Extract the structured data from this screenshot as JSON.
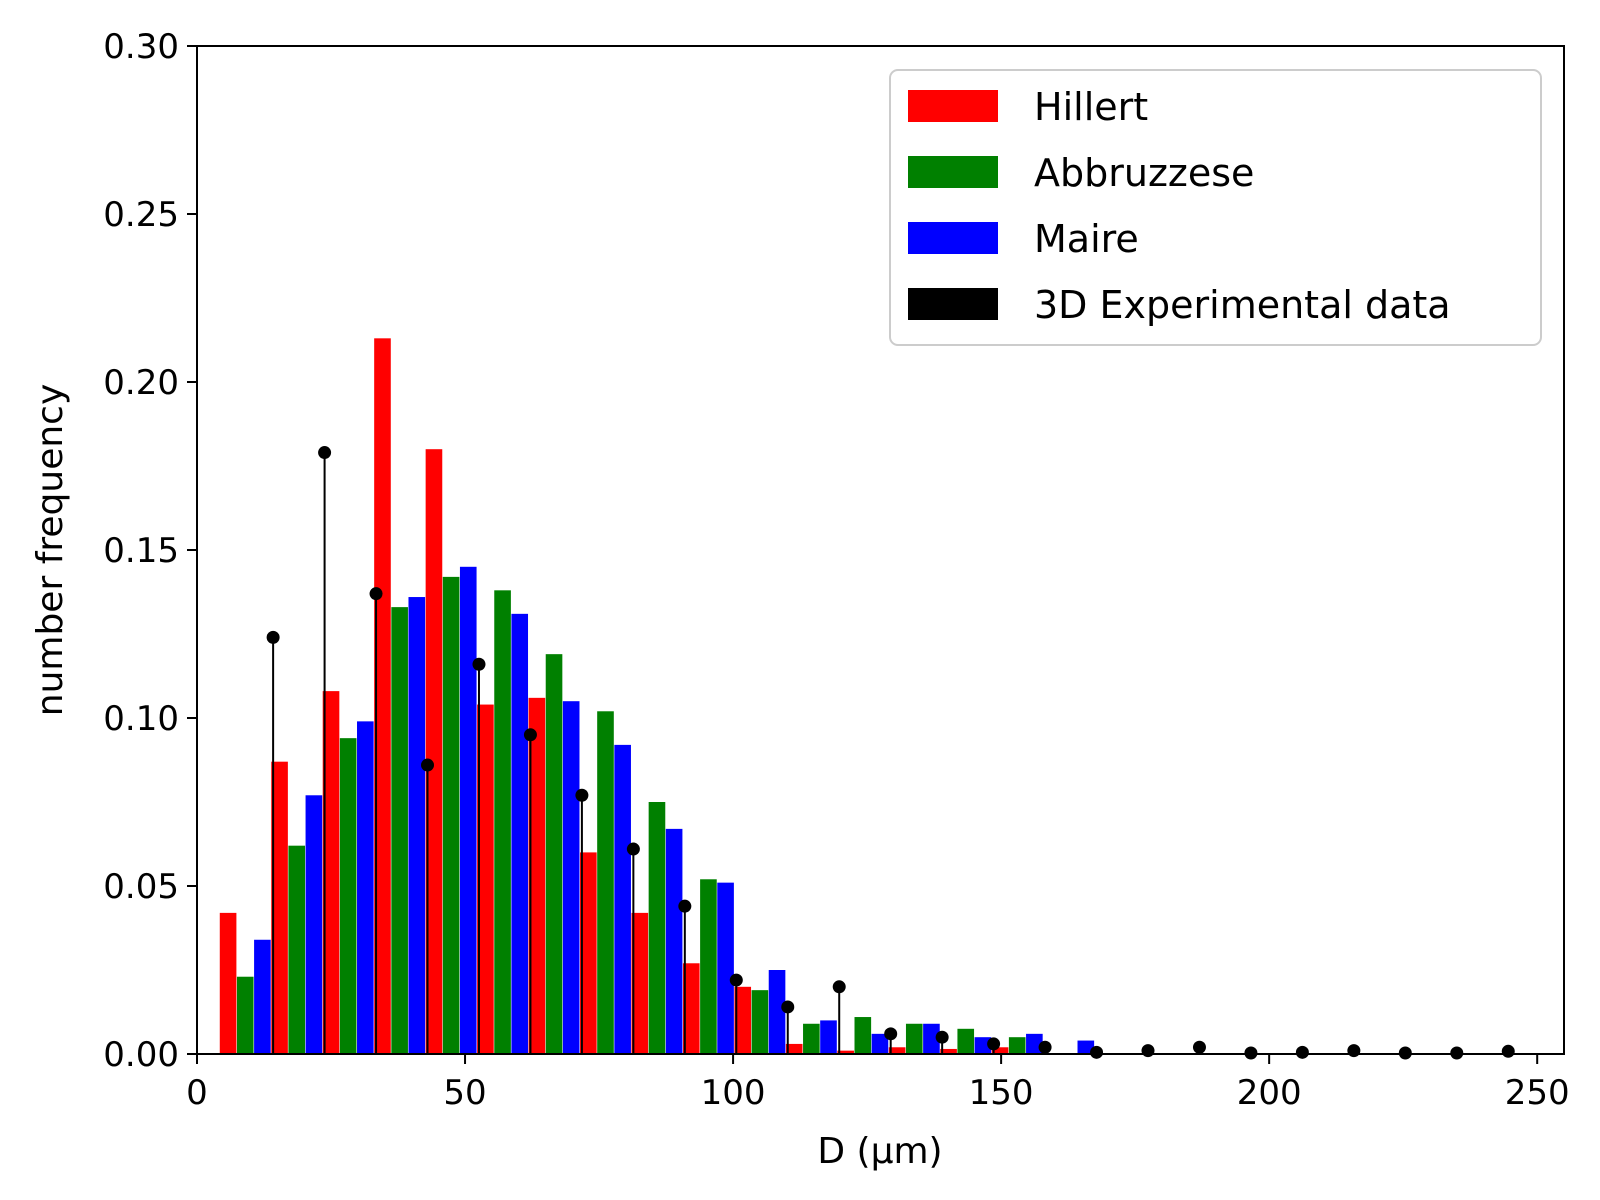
{
  "chart_data": {
    "type": "bar",
    "title": "",
    "xlabel": "D (μm)",
    "ylabel": "number frequency",
    "xlim": [
      0,
      255
    ],
    "ylim": [
      0,
      0.3
    ],
    "xticks": [
      0,
      50,
      100,
      150,
      200,
      250
    ],
    "yticks": [
      0.0,
      0.05,
      0.1,
      0.15,
      0.2,
      0.25,
      0.3
    ],
    "xtick_labels": [
      "0",
      "50",
      "100",
      "150",
      "200",
      "250"
    ],
    "ytick_labels": [
      "0.00",
      "0.05",
      "0.10",
      "0.15",
      "0.20",
      "0.25",
      "0.30"
    ],
    "grid": false,
    "legend_position": "top-right",
    "bin_centers": [
      9.0,
      18.6,
      28.2,
      37.8,
      47.4,
      57.0,
      66.6,
      76.2,
      85.8,
      95.4,
      105.0,
      114.6,
      124.2,
      133.8,
      143.4,
      153.0,
      162.6
    ],
    "series": [
      {
        "name": "Hillert",
        "color": "#ff0000",
        "values": [
          0.042,
          0.087,
          0.108,
          0.213,
          0.18,
          0.104,
          0.106,
          0.06,
          0.042,
          0.027,
          0.02,
          0.003,
          0.001,
          0.002,
          0.0015,
          0.002,
          0.0
        ]
      },
      {
        "name": "Abbruzzese",
        "color": "#008000",
        "values": [
          0.023,
          0.062,
          0.094,
          0.133,
          0.142,
          0.138,
          0.119,
          0.102,
          0.075,
          0.052,
          0.019,
          0.009,
          0.011,
          0.009,
          0.0075,
          0.005,
          0.0
        ]
      },
      {
        "name": "Maire",
        "color": "#0000ff",
        "values": [
          0.034,
          0.077,
          0.099,
          0.136,
          0.145,
          0.131,
          0.105,
          0.092,
          0.067,
          0.051,
          0.025,
          0.01,
          0.006,
          0.009,
          0.005,
          0.006,
          0.004
        ]
      }
    ],
    "experimental": {
      "name": "3D Experimental data",
      "color": "#000000",
      "x": [
        14.2,
        23.8,
        33.4,
        43.0,
        52.6,
        62.2,
        71.8,
        81.4,
        91.0,
        100.6,
        110.2,
        119.8,
        129.4,
        139.0,
        148.6,
        158.2,
        167.8,
        177.4,
        187.0,
        196.6,
        206.2,
        215.8,
        225.4,
        235.0,
        244.6
      ],
      "y": [
        0.124,
        0.179,
        0.137,
        0.086,
        0.116,
        0.095,
        0.077,
        0.061,
        0.044,
        0.022,
        0.014,
        0.02,
        0.006,
        0.005,
        0.003,
        0.002,
        0.0005,
        0.001,
        0.002,
        0.0003,
        0.0005,
        0.001,
        0.0003,
        0.0003,
        0.0008
      ]
    }
  }
}
